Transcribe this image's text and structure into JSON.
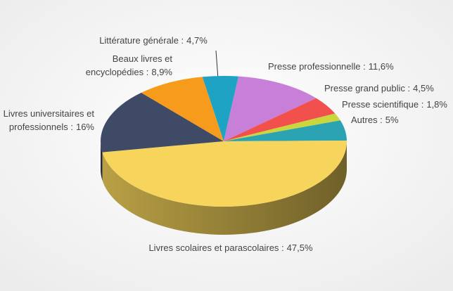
{
  "chart_data": {
    "type": "pie3d",
    "categories": [
      "Littérature générale :",
      "Presse professionnelle :",
      "Presse grand public :",
      "Presse scientifique :",
      "Autres :",
      "Livres scolaires et parascolaires :",
      [
        "Livres universitaires et",
        "professionnels :"
      ],
      [
        "Beaux livres et",
        "encyclopédies :"
      ]
    ],
    "values": [
      4.7,
      11.6,
      4.5,
      1.8,
      5,
      47.5,
      16,
      8.9
    ],
    "value_labels": [
      "4,7%",
      "11,6%",
      "4,5%",
      "1,8%",
      "5%",
      "47,5%",
      "16%",
      "8,9%"
    ],
    "colors": [
      "#1ea3c4",
      "#c77fd8",
      "#f2504d",
      "#c9d63c",
      "#2ba3b3",
      "#f7d55c",
      "#3e4a66",
      "#f79b1c"
    ]
  }
}
